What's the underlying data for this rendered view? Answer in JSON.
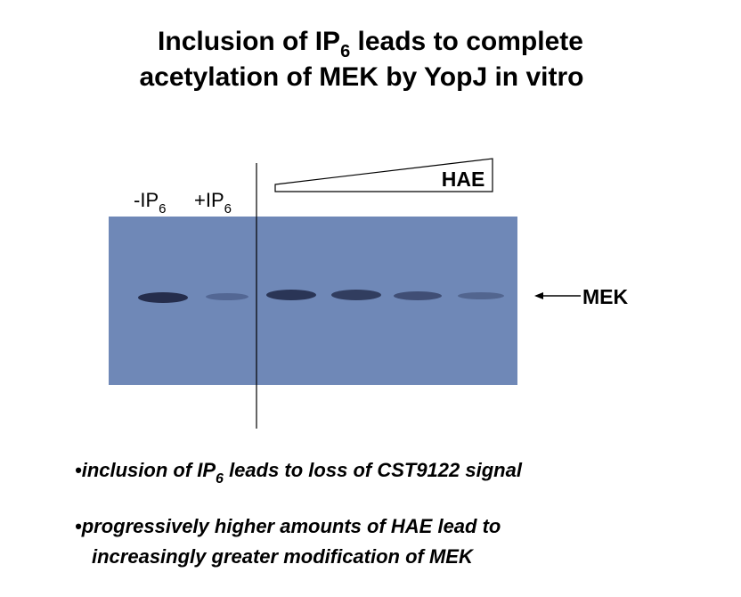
{
  "title": {
    "line1": [
      "Inclusion of IP",
      "6",
      " leads to complete"
    ],
    "line2": "acetylation of MEK by YopJ in vitro"
  },
  "figure": {
    "lanes": [
      [
        "-IP",
        "6"
      ],
      [
        "+IP",
        "6"
      ]
    ],
    "gradient_label": "HAE",
    "band_label": "MEK"
  },
  "bullets": [
    [
      "•inclusion of IP",
      "6",
      " leads to loss of CST9122 signal"
    ],
    [
      "•progressively higher amounts of HAE lead to",
      "increasingly greater modification of MEK"
    ]
  ]
}
